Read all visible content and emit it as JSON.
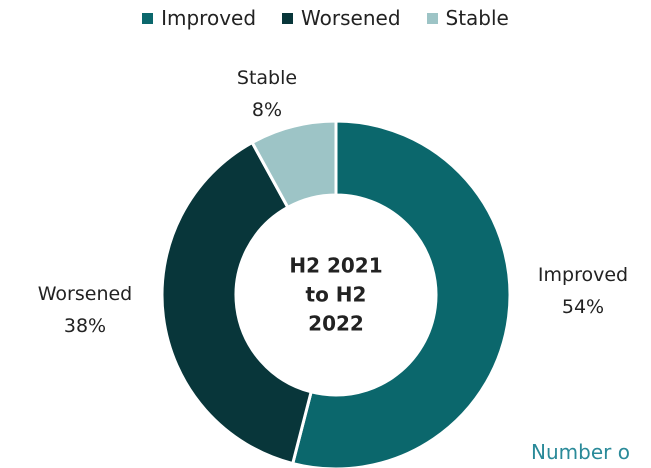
{
  "chart_data": {
    "type": "pie",
    "categories": [
      "Improved",
      "Worsened",
      "Stable"
    ],
    "values": [
      54,
      38,
      8
    ],
    "value_labels": [
      "54%",
      "38%",
      "8%"
    ],
    "colors": [
      "#0b676c",
      "#08363a",
      "#9dc4c6"
    ],
    "center_label": "H2 2021 to H2 2022",
    "annotation": "Number o",
    "donut": true,
    "legend": "top"
  }
}
